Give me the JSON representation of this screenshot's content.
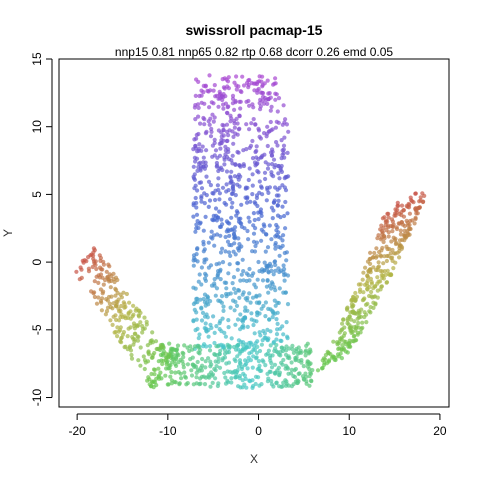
{
  "chart_data": {
    "type": "scatter",
    "title": "swissroll pacmap-15",
    "subtitle": "nnp15 0.81 nnp65 0.82 rtp 0.68 dcorr 0.26 emd 0.05",
    "xlabel": "X",
    "ylabel": "Y",
    "xlim": [
      -22,
      21
    ],
    "ylim": [
      -10.7,
      15
    ],
    "xticks": [
      -20,
      -10,
      0,
      10,
      20
    ],
    "yticks": [
      -10,
      -5,
      0,
      5,
      10,
      15
    ],
    "grid": false,
    "legend": "none",
    "color_scale": "rainbow hue along the roll: red (arm tips) → olive → green (base) → cyan → blue → purple (top of central column)",
    "point_opacity": 0.7,
    "structures": [
      {
        "name": "left arm",
        "x_range": [
          -20,
          -10.5
        ],
        "y_range": [
          -9.5,
          0.9
        ],
        "colors": "red → olive → green"
      },
      {
        "name": "base",
        "x_range": [
          -12,
          12
        ],
        "y_range": [
          -9.6,
          -6
        ],
        "colors": "green → cyan"
      },
      {
        "name": "central column",
        "x_range": [
          -7.5,
          4
        ],
        "y_range": [
          -9,
          13.9
        ],
        "colors": "cyan → blue → purple"
      },
      {
        "name": "right arm",
        "x_range": [
          7,
          19
        ],
        "y_range": [
          -8.5,
          6.3
        ],
        "colors": "green → olive → red"
      }
    ]
  }
}
